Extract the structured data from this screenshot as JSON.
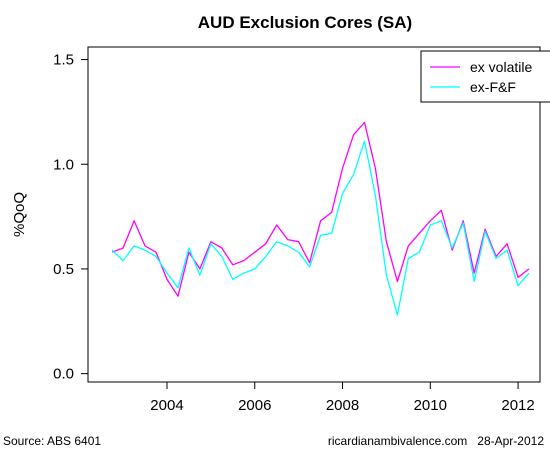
{
  "source": "Source: ABS 6401",
  "site": "ricardianambivalence.com",
  "date": "28-Apr-2012",
  "chart_data": {
    "type": "line",
    "title": "AUD Exclusion Cores (SA)",
    "xlabel": "",
    "ylabel": "%QoQ",
    "xlim": [
      2002.2,
      2012.5
    ],
    "ylim": [
      -0.04,
      1.56
    ],
    "x_ticks": [
      2004,
      2006,
      2008,
      2010,
      2012
    ],
    "x_tick_labels": [
      "2004",
      "2006",
      "2008",
      "2010",
      "2012"
    ],
    "y_ticks": [
      0.0,
      0.5,
      1.0,
      1.5
    ],
    "y_tick_labels": [
      "0.0",
      "0.5",
      "1.0",
      "1.5"
    ],
    "grid": false,
    "legend_position": "top-right",
    "x": [
      2002.75,
      2003.0,
      2003.25,
      2003.5,
      2003.75,
      2004.0,
      2004.25,
      2004.5,
      2004.75,
      2005.0,
      2005.25,
      2005.5,
      2005.75,
      2006.0,
      2006.25,
      2006.5,
      2006.75,
      2007.0,
      2007.25,
      2007.5,
      2007.75,
      2008.0,
      2008.25,
      2008.5,
      2008.75,
      2009.0,
      2009.25,
      2009.5,
      2009.75,
      2010.0,
      2010.25,
      2010.5,
      2010.75,
      2011.0,
      2011.25,
      2011.5,
      2011.75,
      2012.0,
      2012.25
    ],
    "series": [
      {
        "name": "ex volatile",
        "color": "#ff00ff",
        "values": [
          0.58,
          0.6,
          0.73,
          0.61,
          0.58,
          0.45,
          0.37,
          0.58,
          0.5,
          0.63,
          0.6,
          0.52,
          0.54,
          0.58,
          0.62,
          0.71,
          0.64,
          0.63,
          0.53,
          0.73,
          0.77,
          0.98,
          1.14,
          1.2,
          0.98,
          0.63,
          0.44,
          0.61,
          0.67,
          0.73,
          0.78,
          0.59,
          0.73,
          0.48,
          0.69,
          0.56,
          0.62,
          0.46,
          0.5
        ]
      },
      {
        "name": "ex-F&F",
        "color": "#00ffff",
        "values": [
          0.59,
          0.54,
          0.61,
          0.59,
          0.56,
          0.48,
          0.41,
          0.6,
          0.47,
          0.62,
          0.56,
          0.45,
          0.48,
          0.5,
          0.56,
          0.63,
          0.61,
          0.58,
          0.51,
          0.66,
          0.67,
          0.86,
          0.95,
          1.11,
          0.85,
          0.47,
          0.28,
          0.55,
          0.58,
          0.71,
          0.73,
          0.6,
          0.72,
          0.44,
          0.68,
          0.55,
          0.59,
          0.42,
          0.48
        ]
      }
    ]
  }
}
